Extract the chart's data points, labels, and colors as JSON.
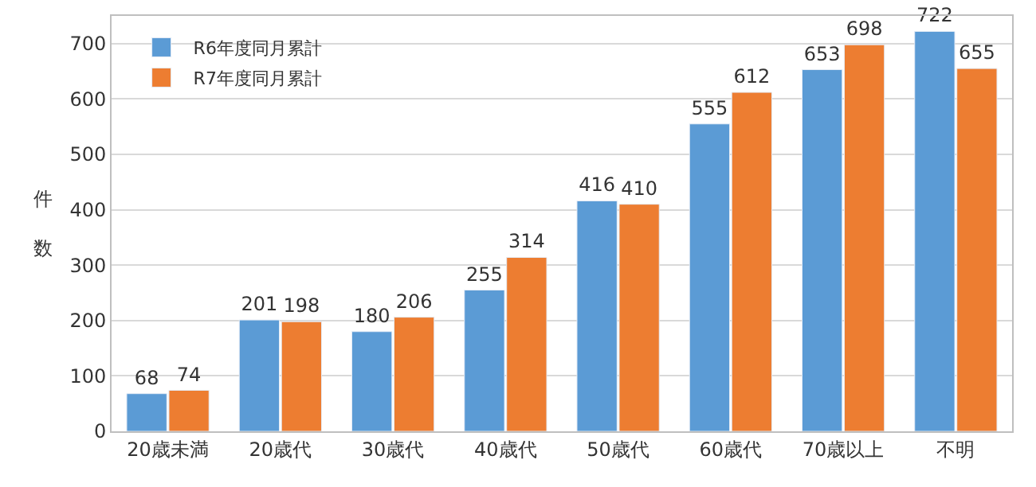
{
  "chart_data": {
    "type": "bar",
    "ylabel": "件数",
    "categories": [
      "20歳未満",
      "20歳代",
      "30歳代",
      "40歳代",
      "50歳代",
      "60歳代",
      "70歳以上",
      "不明"
    ],
    "series": [
      {
        "name": "R6年度同月累計",
        "color": "#5b9bd5",
        "values": [
          68,
          201,
          180,
          255,
          416,
          555,
          653,
          722
        ]
      },
      {
        "name": "R7年度同月累計",
        "color": "#ed7d31",
        "values": [
          74,
          198,
          206,
          314,
          410,
          612,
          698,
          655
        ]
      }
    ],
    "ylim": [
      0,
      750
    ],
    "yticks": [
      0,
      100,
      200,
      300,
      400,
      500,
      600,
      700
    ],
    "grid": "y",
    "legend": "top left",
    "data_labels": true
  }
}
